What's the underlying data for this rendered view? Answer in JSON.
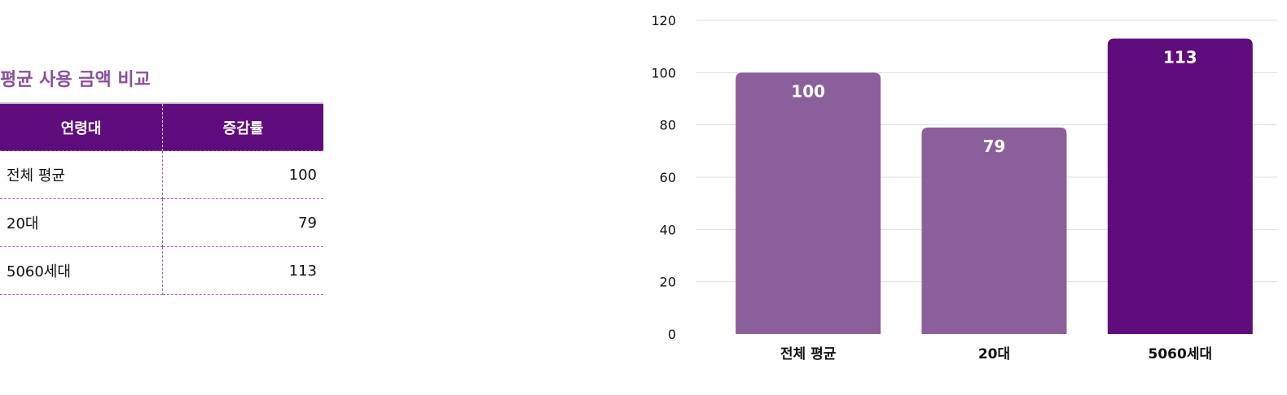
{
  "table": {
    "title": "평균 사용 금액 비교",
    "headers": [
      "연령대",
      "증감률"
    ],
    "rows": [
      {
        "age": "전체 평균",
        "value": "100"
      },
      {
        "age": "20대",
        "value": "79"
      },
      {
        "age": "5060세대",
        "value": "113"
      }
    ]
  },
  "chart_data": {
    "type": "bar",
    "categories": [
      "전체 평균",
      "20대",
      "5060세대"
    ],
    "values": [
      100,
      79,
      113
    ],
    "bar_colors": [
      "#8a5f9c",
      "#8a5f9c",
      "#5f0c7c"
    ],
    "ylim": [
      0,
      120
    ],
    "yticks": [
      0,
      20,
      40,
      60,
      80,
      100,
      120
    ],
    "grid": true,
    "grid_color": "#dddddd",
    "title": "",
    "xlabel": "",
    "ylabel": ""
  }
}
